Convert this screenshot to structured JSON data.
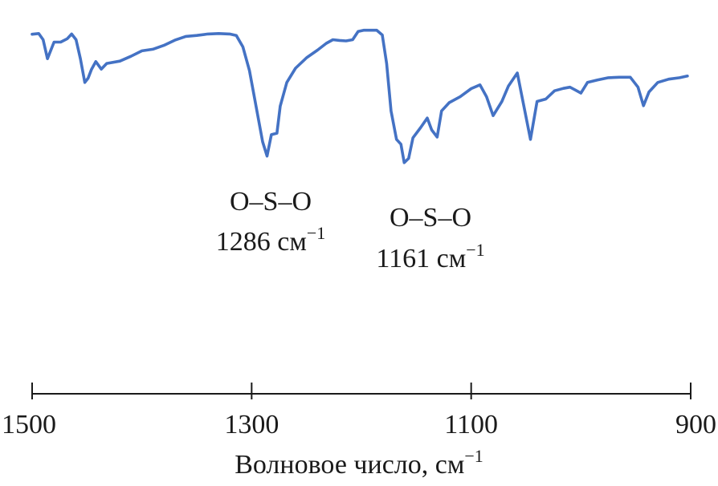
{
  "chart_data": {
    "type": "line",
    "xlabel": "Волновое число, см",
    "xlabel_sup": "−1",
    "xlim": [
      1500,
      900
    ],
    "x_reversed": true,
    "y_axis_shown": false,
    "ylim": [
      0,
      1
    ],
    "grid": false,
    "xticks": [
      1500,
      1300,
      1100,
      900
    ],
    "xtick_labels": [
      "1500",
      "1300",
      "1100",
      "900"
    ],
    "line_color": "#4472c4",
    "series": [
      {
        "points": [
          [
            1500,
            0.903
          ],
          [
            1494,
            0.906
          ],
          [
            1490,
            0.88
          ],
          [
            1486,
            0.8
          ],
          [
            1483,
            0.835
          ],
          [
            1480,
            0.87
          ],
          [
            1474,
            0.87
          ],
          [
            1468,
            0.884
          ],
          [
            1464,
            0.904
          ],
          [
            1460,
            0.88
          ],
          [
            1456,
            0.8
          ],
          [
            1452,
            0.7
          ],
          [
            1449,
            0.718
          ],
          [
            1446,
            0.754
          ],
          [
            1442,
            0.788
          ],
          [
            1437,
            0.756
          ],
          [
            1432,
            0.78
          ],
          [
            1420,
            0.79
          ],
          [
            1410,
            0.81
          ],
          [
            1400,
            0.833
          ],
          [
            1390,
            0.84
          ],
          [
            1380,
            0.856
          ],
          [
            1370,
            0.878
          ],
          [
            1360,
            0.894
          ],
          [
            1350,
            0.898
          ],
          [
            1340,
            0.904
          ],
          [
            1330,
            0.906
          ],
          [
            1320,
            0.904
          ],
          [
            1314,
            0.898
          ],
          [
            1308,
            0.85
          ],
          [
            1302,
            0.75
          ],
          [
            1296,
            0.6
          ],
          [
            1290,
            0.45
          ],
          [
            1286,
            0.39
          ],
          [
            1282,
            0.48
          ],
          [
            1277,
            0.486
          ],
          [
            1274,
            0.6
          ],
          [
            1268,
            0.7
          ],
          [
            1260,
            0.76
          ],
          [
            1250,
            0.804
          ],
          [
            1240,
            0.836
          ],
          [
            1232,
            0.865
          ],
          [
            1226,
            0.88
          ],
          [
            1220,
            0.877
          ],
          [
            1214,
            0.875
          ],
          [
            1208,
            0.88
          ],
          [
            1203,
            0.915
          ],
          [
            1198,
            0.92
          ],
          [
            1186,
            0.92
          ],
          [
            1181,
            0.9
          ],
          [
            1177,
            0.78
          ],
          [
            1173,
            0.58
          ],
          [
            1168,
            0.46
          ],
          [
            1164,
            0.44
          ],
          [
            1161,
            0.362
          ],
          [
            1157,
            0.38
          ],
          [
            1153,
            0.467
          ],
          [
            1146,
            0.51
          ],
          [
            1140,
            0.55
          ],
          [
            1136,
            0.5
          ],
          [
            1131,
            0.47
          ],
          [
            1127,
            0.58
          ],
          [
            1120,
            0.615
          ],
          [
            1110,
            0.64
          ],
          [
            1100,
            0.674
          ],
          [
            1092,
            0.69
          ],
          [
            1086,
            0.64
          ],
          [
            1080,
            0.56
          ],
          [
            1072,
            0.62
          ],
          [
            1066,
            0.685
          ],
          [
            1058,
            0.74
          ],
          [
            1052,
            0.6
          ],
          [
            1046,
            0.46
          ],
          [
            1040,
            0.62
          ],
          [
            1032,
            0.63
          ],
          [
            1024,
            0.665
          ],
          [
            1016,
            0.675
          ],
          [
            1010,
            0.68
          ],
          [
            1005,
            0.668
          ],
          [
            1000,
            0.655
          ],
          [
            994,
            0.7
          ],
          [
            985,
            0.71
          ],
          [
            975,
            0.72
          ],
          [
            965,
            0.722
          ],
          [
            955,
            0.722
          ],
          [
            948,
            0.68
          ],
          [
            943,
            0.602
          ],
          [
            938,
            0.66
          ],
          [
            930,
            0.7
          ],
          [
            920,
            0.714
          ],
          [
            910,
            0.72
          ],
          [
            903,
            0.727
          ]
        ]
      }
    ],
    "annotations": [
      {
        "bond": "O–S–O",
        "wavenumber": "1286 см",
        "sup": "−1"
      },
      {
        "bond": "O–S–O",
        "wavenumber": "1161 см",
        "sup": "−1"
      }
    ]
  }
}
